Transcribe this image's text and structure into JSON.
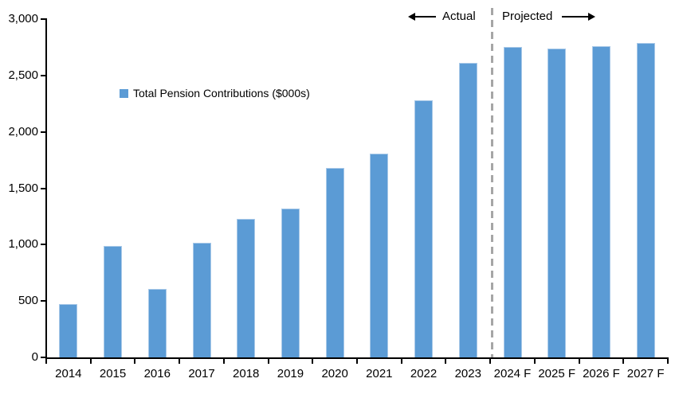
{
  "chart_data": {
    "type": "bar",
    "title": "",
    "xlabel": "",
    "ylabel": "",
    "legend": "Total Pension Contributions ($000s)",
    "legend_position": "upper-left-inside",
    "grid": false,
    "categories": [
      "2014",
      "2015",
      "2016",
      "2017",
      "2018",
      "2019",
      "2020",
      "2021",
      "2022",
      "2023",
      "2024 F",
      "2025 F",
      "2026 F",
      "2027 F"
    ],
    "values": [
      470,
      990,
      610,
      1020,
      1230,
      1320,
      1680,
      1810,
      2280,
      2610,
      2750,
      2740,
      2760,
      2790
    ],
    "ylim": [
      0,
      3000
    ],
    "y_tick_step": 500,
    "y_tick_labels": [
      "0",
      "500",
      "1,000",
      "1,500",
      "2,000",
      "2,500",
      "3,000"
    ],
    "colors": {
      "bar_fill": "#5B9BD5",
      "bar_border": "#A9C9E8",
      "divider": "#A6A6A6",
      "axis": "#000000"
    },
    "annotations": {
      "actual_label": "Actual",
      "projected_label": "Projected",
      "divider_between": [
        "2023",
        "2024 F"
      ]
    }
  }
}
